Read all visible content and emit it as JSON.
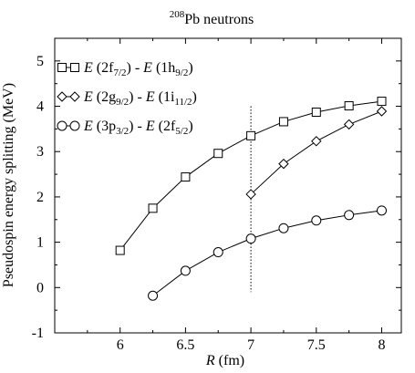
{
  "chart_data": {
    "type": "line",
    "title_superscript": "208",
    "title_main": "Pb neutrons",
    "xlabel_italic": "R",
    "xlabel_unit": " (fm)",
    "ylabel": "Pseudospin energy splitting (MeV)",
    "xlim": [
      5.5,
      8.15
    ],
    "ylim": [
      -1,
      5.5
    ],
    "x_ticks": [
      6,
      6.5,
      7,
      7.5,
      8
    ],
    "x_tick_labels": [
      "6",
      "6.5",
      "7",
      "7.5",
      "8"
    ],
    "y_ticks": [
      -1,
      0,
      1,
      2,
      3,
      4,
      5
    ],
    "y_tick_labels": [
      "-1",
      "0",
      "1",
      "2",
      "3",
      "4",
      "5"
    ],
    "vertical_reference_line": {
      "x": 7,
      "y_from": -0.1,
      "y_to": 4.0,
      "style": "dotted"
    },
    "legend_position": "top-left",
    "series": [
      {
        "marker": "square",
        "legend": {
          "e1": "E",
          "s1_pre": " (2f",
          "s1_sub": "7/2",
          "s1_post": ") - ",
          "e2": "E",
          "s2_pre": " (1h",
          "s2_sub": "9/2",
          "s2_post": ")"
        },
        "x": [
          6.0,
          6.25,
          6.5,
          6.75,
          7.0,
          7.25,
          7.5,
          7.75,
          8.0
        ],
        "y": [
          0.82,
          1.75,
          2.44,
          2.96,
          3.35,
          3.66,
          3.87,
          4.01,
          4.11
        ]
      },
      {
        "marker": "diamond",
        "legend": {
          "e1": "E",
          "s1_pre": " (2g",
          "s1_sub": "9/2",
          "s1_post": ") - ",
          "e2": "E",
          "s2_pre": " (1i",
          "s2_sub": "11/2",
          "s2_post": ")"
        },
        "x": [
          7.0,
          7.25,
          7.5,
          7.75,
          8.0
        ],
        "y": [
          2.06,
          2.73,
          3.23,
          3.6,
          3.89
        ]
      },
      {
        "marker": "circle",
        "legend": {
          "e1": "E",
          "s1_pre": " (3p",
          "s1_sub": "3/2",
          "s1_post": ") - ",
          "e2": "E",
          "s2_pre": " (2f",
          "s2_sub": "5/2",
          "s2_post": ")"
        },
        "x": [
          6.25,
          6.5,
          6.75,
          7.0,
          7.25,
          7.5,
          7.75,
          8.0
        ],
        "y": [
          -0.18,
          0.37,
          0.78,
          1.08,
          1.31,
          1.48,
          1.6,
          1.7
        ]
      }
    ]
  }
}
